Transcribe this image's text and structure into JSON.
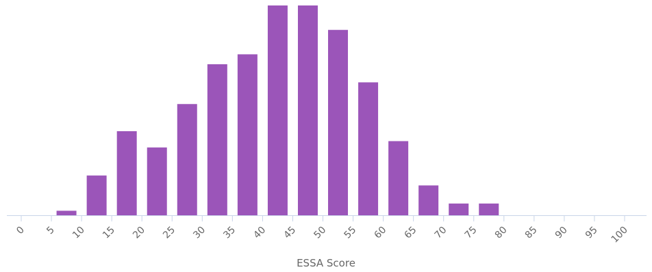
{
  "chart_data": {
    "type": "bar",
    "xlabel": "ESSA Score",
    "ylabel": "",
    "title": "",
    "x_ticks": [
      "0",
      "5",
      "10",
      "15",
      "20",
      "25",
      "30",
      "35",
      "40",
      "45",
      "50",
      "55",
      "60",
      "65",
      "70",
      "75",
      "80",
      "85",
      "90",
      "95",
      "100"
    ],
    "xlim": [
      0,
      100
    ],
    "bin_width": 5,
    "x": [
      5,
      10,
      15,
      20,
      25,
      30,
      35,
      40,
      45,
      50,
      55,
      60,
      65,
      70,
      75
    ],
    "values": [
      0.5,
      4.4,
      9.3,
      7.5,
      12.3,
      16.7,
      17.8,
      23.2,
      23.2,
      20.5,
      14.7,
      8.2,
      3.3,
      1.3,
      1.3
    ],
    "ylim": [
      0,
      23.2
    ],
    "grid": false,
    "bar_color": "#9b55b9",
    "axis_color": "#c8d4e8",
    "label_color": "#666666"
  }
}
